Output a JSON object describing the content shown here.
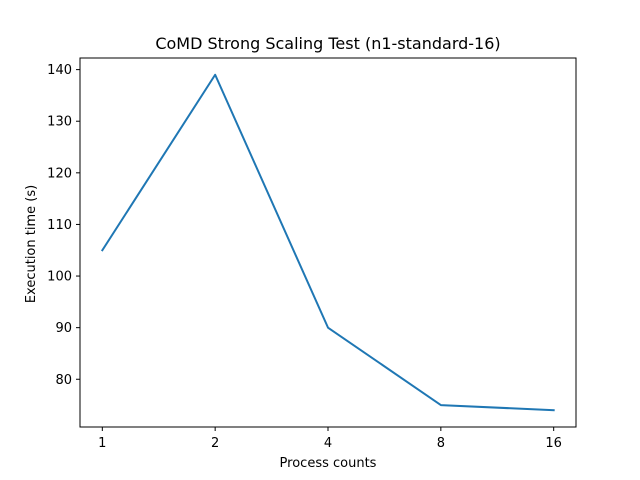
{
  "chart_data": {
    "type": "line",
    "title": "CoMD Strong Scaling Test (n1-standard-16)",
    "xlabel": "Process counts",
    "ylabel": "Execution time (s)",
    "categories": [
      "1",
      "2",
      "4",
      "8",
      "16"
    ],
    "series": [
      {
        "values": [
          105,
          139,
          90,
          75,
          74
        ],
        "color": "#1f77b4"
      }
    ],
    "ylim": [
      70.75,
      142.25
    ],
    "yticks": [
      80,
      90,
      100,
      110,
      120,
      130,
      140
    ],
    "grid": false,
    "legend": "none"
  }
}
